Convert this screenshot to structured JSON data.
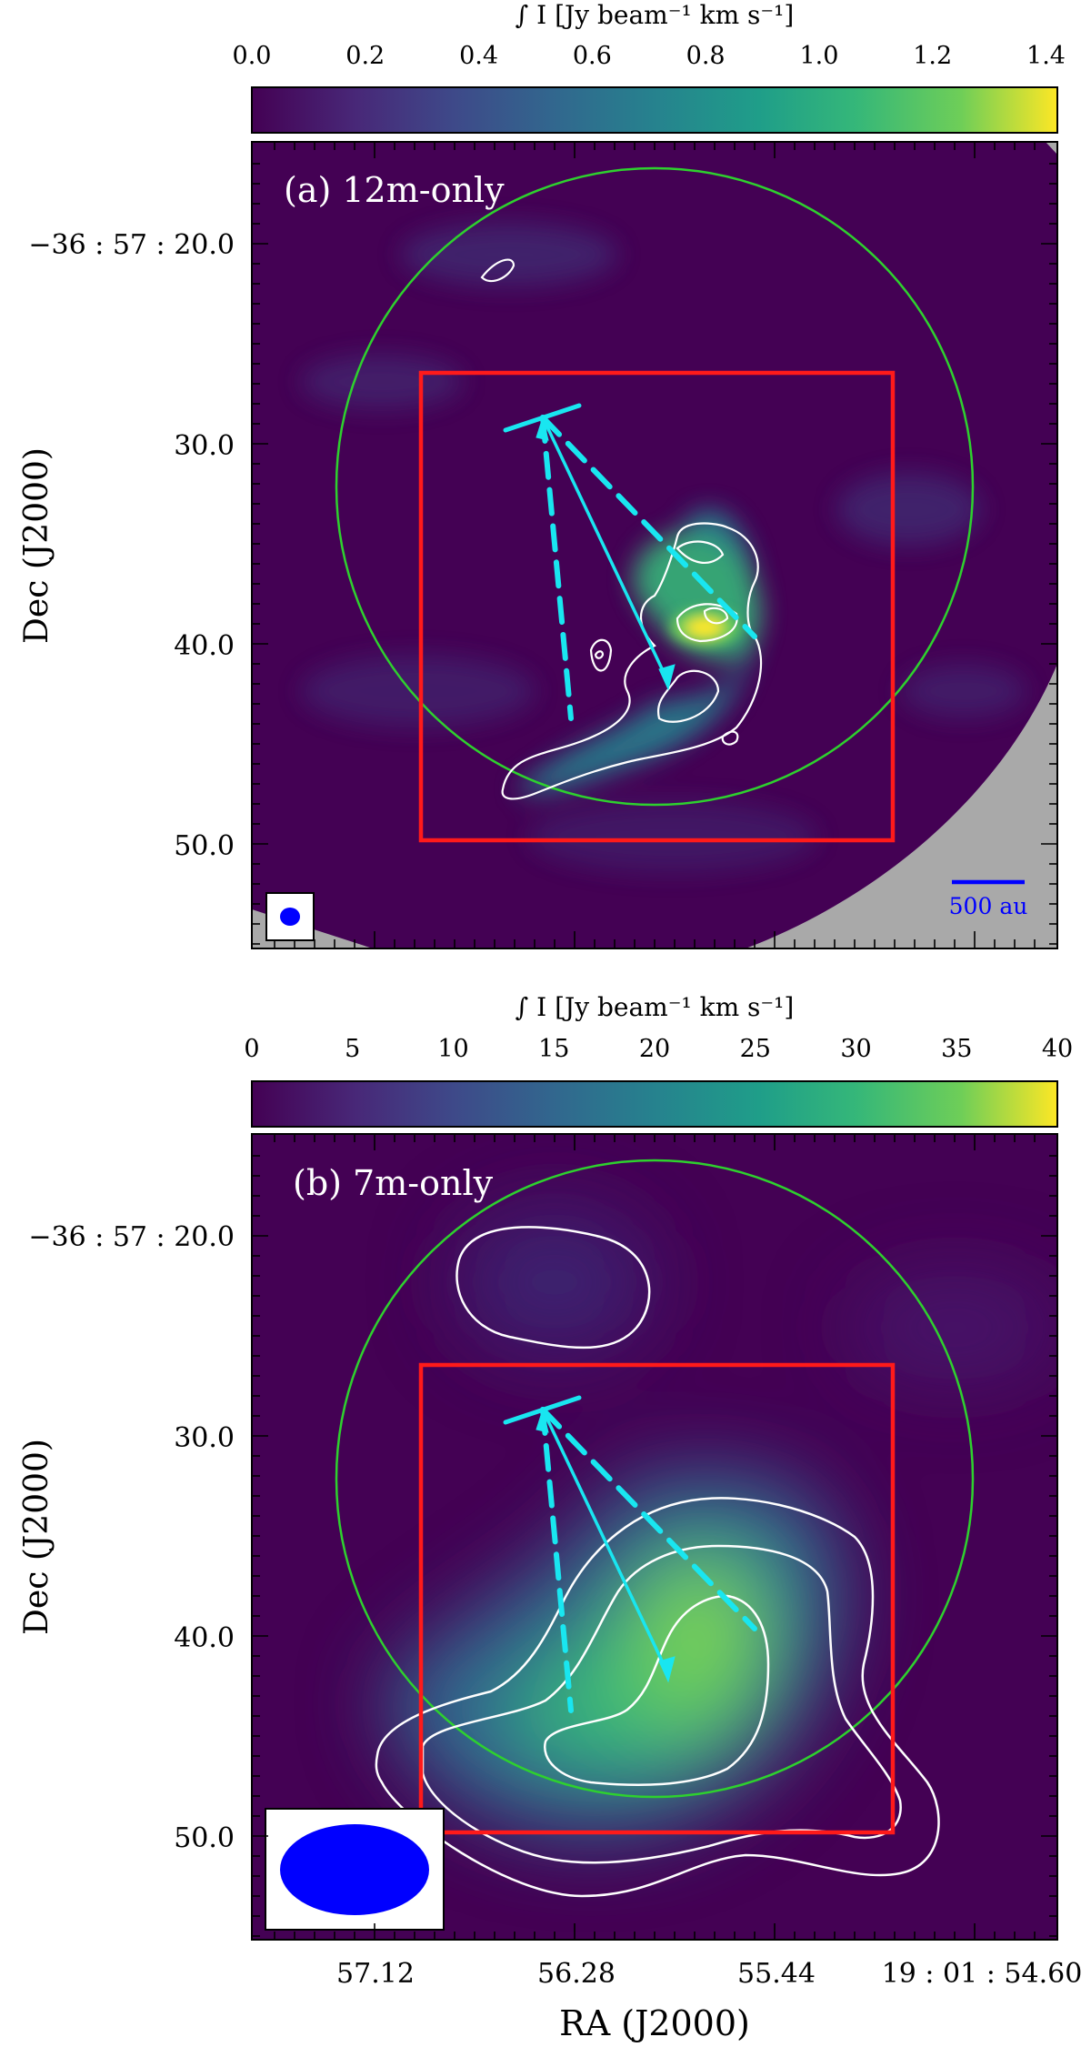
{
  "chart_data": [
    {
      "type": "heatmap",
      "panel_label": "(a) 12m-only",
      "colorbar": {
        "label": "∫ I [Jy beam⁻¹ km s⁻¹]",
        "ticks": [
          "0.0",
          "0.2",
          "0.4",
          "0.6",
          "0.8",
          "1.0",
          "1.2",
          "1.4"
        ],
        "range": [
          0.0,
          1.42
        ]
      },
      "ylabel": "Dec (J2000)",
      "yticks": [
        "−36 : 57 : 20.0",
        "30.0",
        "40.0",
        "50.0"
      ],
      "xticks": [],
      "scale_bar": "500 au",
      "peak_intensity_approx": 1.4,
      "peak_position_offset_arcsec": [
        0,
        39.5
      ]
    },
    {
      "type": "heatmap",
      "panel_label": "(b) 7m-only",
      "colorbar": {
        "label": "∫ I [Jy beam⁻¹ km s⁻¹]",
        "ticks": [
          "0",
          "5",
          "10",
          "15",
          "20",
          "25",
          "30",
          "35",
          "40"
        ],
        "range": [
          0,
          40
        ]
      },
      "ylabel": "Dec (J2000)",
      "xlabel": "RA (J2000)",
      "yticks": [
        "−36 : 57 : 20.0",
        "30.0",
        "40.0",
        "50.0"
      ],
      "xticks": [
        "57.12",
        "56.28",
        "55.44",
        "19 : 01 : 54.60"
      ],
      "peak_intensity_approx": 30,
      "peak_position_offset_arcsec": [
        0,
        42
      ]
    }
  ],
  "colors": {
    "box": "#ff1a1a",
    "arrows": "#19e6f0",
    "circle": "#2ed12e",
    "contours": "#ffffff",
    "beam": "#0000ff",
    "masked": "#a9a9a9",
    "cmap_low": "#440154",
    "cmap_high": "#fde725"
  }
}
